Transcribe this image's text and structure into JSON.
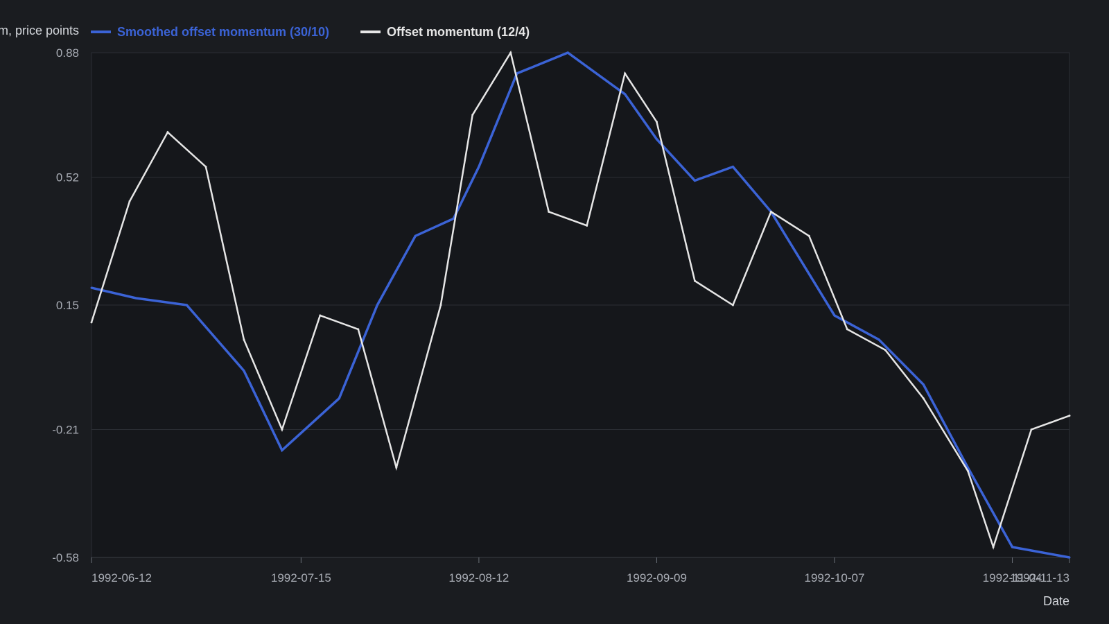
{
  "chart_data": {
    "type": "line",
    "title": "",
    "xlabel": "Date",
    "ylabel": "Momentum, price points",
    "xlim": [
      "1992-06-12",
      "1992-11-13"
    ],
    "ylim": [
      -0.58,
      0.88
    ],
    "y_ticks": [
      0.88,
      0.52,
      0.15,
      -0.21,
      -0.58
    ],
    "x_ticks": [
      "1992-06-12",
      "1992-07-15",
      "1992-08-12",
      "1992-09-09",
      "1992-10-07",
      "1992-11-04",
      "1992-11-13"
    ],
    "grid": true,
    "legend_position": "top-left",
    "series": [
      {
        "name": "Smoothed offset momentum (30/10)",
        "color": "#3b63d6",
        "points": [
          [
            "1992-06-12",
            0.2
          ],
          [
            "1992-06-19",
            0.17
          ],
          [
            "1992-06-27",
            0.15
          ],
          [
            "1992-07-06",
            -0.04
          ],
          [
            "1992-07-12",
            -0.27
          ],
          [
            "1992-07-21",
            -0.12
          ],
          [
            "1992-07-27",
            0.15
          ],
          [
            "1992-08-02",
            0.35
          ],
          [
            "1992-08-08",
            0.4
          ],
          [
            "1992-08-12",
            0.55
          ],
          [
            "1992-08-18",
            0.82
          ],
          [
            "1992-08-26",
            0.88
          ],
          [
            "1992-09-04",
            0.76
          ],
          [
            "1992-09-09",
            0.63
          ],
          [
            "1992-09-15",
            0.51
          ],
          [
            "1992-09-21",
            0.55
          ],
          [
            "1992-09-27",
            0.42
          ],
          [
            "1992-10-07",
            0.12
          ],
          [
            "1992-10-14",
            0.05
          ],
          [
            "1992-10-21",
            -0.08
          ],
          [
            "1992-10-28",
            -0.32
          ],
          [
            "1992-11-04",
            -0.55
          ],
          [
            "1992-11-13",
            -0.58
          ]
        ]
      },
      {
        "name": "Offset momentum (12/4)",
        "color": "#e6e6e6",
        "points": [
          [
            "1992-06-12",
            0.1
          ],
          [
            "1992-06-18",
            0.45
          ],
          [
            "1992-06-24",
            0.65
          ],
          [
            "1992-06-30",
            0.55
          ],
          [
            "1992-07-06",
            0.05
          ],
          [
            "1992-07-12",
            -0.21
          ],
          [
            "1992-07-18",
            0.12
          ],
          [
            "1992-07-24",
            0.08
          ],
          [
            "1992-07-30",
            -0.32
          ],
          [
            "1992-08-06",
            0.15
          ],
          [
            "1992-08-11",
            0.7
          ],
          [
            "1992-08-17",
            0.88
          ],
          [
            "1992-08-23",
            0.42
          ],
          [
            "1992-08-29",
            0.38
          ],
          [
            "1992-09-04",
            0.82
          ],
          [
            "1992-09-09",
            0.68
          ],
          [
            "1992-09-15",
            0.22
          ],
          [
            "1992-09-21",
            0.15
          ],
          [
            "1992-09-27",
            0.42
          ],
          [
            "1992-10-03",
            0.35
          ],
          [
            "1992-10-09",
            0.08
          ],
          [
            "1992-10-15",
            0.02
          ],
          [
            "1992-10-21",
            -0.12
          ],
          [
            "1992-10-28",
            -0.33
          ],
          [
            "1992-11-01",
            -0.55
          ],
          [
            "1992-11-07",
            -0.21
          ],
          [
            "1992-11-13",
            -0.17
          ]
        ]
      }
    ]
  }
}
